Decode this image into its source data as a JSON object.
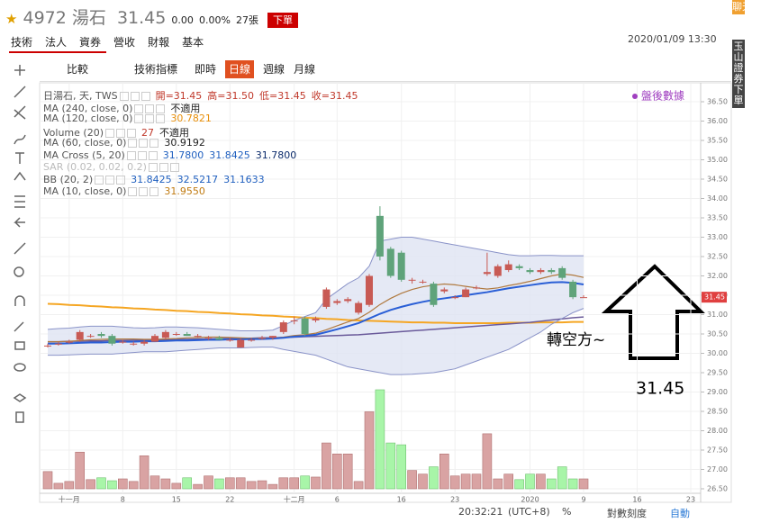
{
  "header": {
    "star": "★",
    "code": "4972",
    "name": "湯石",
    "price": "31.45",
    "change": "0.00",
    "change_pct": "0.00%",
    "volume": "27張",
    "order_button": "下單",
    "datetime": "2020/01/09 13:30"
  },
  "tabs": [
    "技術",
    "法人",
    "資券",
    "營收",
    "財報",
    "基本"
  ],
  "toolbar": {
    "compare": "比較",
    "indicators": "技術指標",
    "items": [
      "即時",
      "日線",
      "週線",
      "月線"
    ]
  },
  "legend_rows": [
    {
      "label": "日湯石, 天, TWS",
      "values": [
        "開=31.45",
        "高=31.50",
        "低=31.45",
        "收=31.45"
      ],
      "colors": [
        "#c0392b"
      ]
    },
    {
      "label": "MA (240, close, 0)",
      "values": [
        "不適用"
      ],
      "colors": [
        "#222"
      ]
    },
    {
      "label": "MA (120, close, 0)",
      "values": [
        "30.7821"
      ],
      "colors": [
        "#e8900c"
      ]
    },
    {
      "label": "Volume (20)",
      "values": [
        "27",
        "不適用"
      ],
      "colors": [
        "#c0392b",
        "#222"
      ]
    },
    {
      "label": "MA (60, close, 0)",
      "values": [
        "30.9192"
      ],
      "colors": [
        "#222"
      ]
    },
    {
      "label": "MA Cross (5, 20)",
      "values": [
        "31.7800",
        "31.8425",
        "31.7800"
      ],
      "colors": [
        "#1f5fbf",
        "#1f5fbf",
        "#0a2a6a"
      ]
    },
    {
      "label": "SAR (0.02, 0.02, 0.2)",
      "values": [],
      "colors": [
        "#bbb"
      ]
    },
    {
      "label": "BB (20, 2)",
      "values": [
        "31.8425",
        "32.5217",
        "31.1633"
      ],
      "colors": [
        "#1f5fbf"
      ]
    },
    {
      "label": "MA (10, close, 0)",
      "values": [
        "31.9550"
      ],
      "colors": [
        "#c07a10"
      ]
    }
  ],
  "side_tabs": [
    "聊天室",
    "玉山證券下單"
  ],
  "footer": {
    "time": "20:32:21",
    "tz": "(UTC+8)",
    "pct": "%",
    "log": "對數刻度",
    "auto": "自動"
  },
  "chart_data": {
    "type": "candlestick",
    "categories": [
      null,
      null,
      "十一月",
      null,
      null,
      null,
      null,
      "8",
      null,
      null,
      null,
      null,
      "15",
      null,
      null,
      null,
      null,
      "22",
      null,
      null,
      null,
      null,
      null,
      "十二月",
      null,
      null,
      null,
      "6",
      null,
      null,
      null,
      null,
      null,
      "16",
      null,
      null,
      null,
      null,
      "23",
      null,
      null,
      null,
      null,
      null,
      null,
      "2020",
      null,
      null,
      null,
      null,
      "9",
      null,
      null,
      null,
      null,
      "16",
      null,
      null,
      null,
      null,
      "23",
      null
    ],
    "open": [
      30.2,
      30.25,
      30.3,
      30.35,
      30.45,
      30.5,
      30.45,
      30.3,
      30.25,
      30.25,
      30.3,
      30.4,
      30.5,
      30.5,
      30.45,
      30.4,
      30.4,
      30.35,
      30.15,
      30.35,
      30.4,
      30.4,
      30.55,
      30.85,
      30.9,
      30.85,
      31.2,
      31.3,
      31.35,
      31.05,
      31.25,
      33.55,
      32.7,
      32.6,
      31.9,
      31.85,
      31.8,
      31.6,
      31.45,
      31.45,
      31.7,
      32.05,
      32.0,
      32.15,
      32.25,
      32.15,
      32.1,
      32.15,
      32.2,
      31.85,
      31.45,
      null,
      null,
      null,
      null,
      null,
      null,
      null,
      null,
      null,
      null,
      null
    ],
    "high": [
      30.25,
      30.3,
      30.35,
      30.6,
      30.5,
      30.55,
      30.5,
      30.35,
      30.3,
      30.35,
      30.5,
      30.6,
      30.55,
      30.55,
      30.5,
      30.45,
      30.45,
      30.4,
      30.4,
      30.4,
      30.45,
      30.45,
      30.85,
      30.95,
      30.95,
      30.95,
      31.7,
      31.4,
      31.45,
      31.35,
      32.05,
      33.8,
      32.75,
      32.65,
      31.95,
      31.9,
      31.85,
      31.7,
      31.5,
      31.7,
      31.75,
      32.6,
      32.3,
      32.4,
      32.3,
      32.2,
      32.2,
      32.2,
      32.25,
      31.9,
      31.5,
      null,
      null,
      null,
      null,
      null,
      null,
      null,
      null,
      null,
      null,
      null
    ],
    "low": [
      30.15,
      30.2,
      30.25,
      30.3,
      30.4,
      30.4,
      30.2,
      30.25,
      30.2,
      30.2,
      30.3,
      30.35,
      30.45,
      30.45,
      30.4,
      30.35,
      30.35,
      30.3,
      30.15,
      30.3,
      30.35,
      30.35,
      30.5,
      30.75,
      30.45,
      30.8,
      31.15,
      31.25,
      31.3,
      31.0,
      31.2,
      32.4,
      31.95,
      31.85,
      31.8,
      31.8,
      31.2,
      31.55,
      31.4,
      31.45,
      31.65,
      32.0,
      31.95,
      32.1,
      32.15,
      32.05,
      32.05,
      32.05,
      31.9,
      31.4,
      31.45,
      null,
      null,
      null,
      null,
      null,
      null,
      null,
      null,
      null,
      null,
      null
    ],
    "close": [
      30.2,
      30.25,
      30.3,
      30.55,
      30.45,
      30.45,
      30.25,
      30.3,
      30.25,
      30.3,
      30.45,
      30.55,
      30.5,
      30.45,
      30.45,
      30.4,
      30.35,
      30.35,
      30.35,
      30.35,
      30.4,
      30.45,
      30.8,
      30.85,
      30.5,
      30.9,
      31.65,
      31.35,
      31.4,
      31.3,
      32.0,
      32.5,
      32.0,
      31.9,
      31.9,
      31.85,
      31.25,
      31.65,
      31.45,
      31.65,
      31.7,
      32.1,
      32.25,
      32.3,
      32.2,
      32.1,
      32.15,
      32.1,
      31.95,
      31.45,
      31.45,
      null,
      null,
      null,
      null,
      null,
      null,
      null,
      null,
      null,
      null,
      null
    ],
    "volume": [
      47,
      15,
      20,
      100,
      25,
      30,
      22,
      27,
      20,
      90,
      35,
      27,
      15,
      30,
      12,
      35,
      27,
      30,
      30,
      20,
      22,
      12,
      30,
      30,
      35,
      32,
      125,
      95,
      95,
      20,
      210,
      270,
      125,
      120,
      50,
      40,
      60,
      95,
      35,
      40,
      40,
      150,
      27,
      40,
      25,
      40,
      40,
      27,
      60,
      27,
      27,
      null,
      null,
      null,
      null,
      null,
      null,
      null,
      null,
      null,
      null,
      null
    ],
    "lines": [
      {
        "color": "#f5a623",
        "width": 2,
        "values": [
          31.28,
          31.27,
          31.25,
          31.24,
          31.22,
          31.21,
          31.19,
          31.18,
          31.16,
          31.15,
          31.13,
          31.12,
          31.1,
          31.09,
          31.07,
          31.06,
          31.04,
          31.03,
          31.01,
          31.0,
          30.98,
          30.97,
          30.95,
          30.94,
          30.92,
          30.91,
          30.89,
          30.88,
          30.86,
          30.85,
          30.84,
          30.83,
          30.82,
          30.81,
          30.8,
          30.8,
          30.79,
          30.79,
          30.78,
          30.78,
          30.78,
          30.78,
          30.78,
          30.79,
          30.79,
          30.79,
          30.8,
          30.8,
          30.8,
          30.81,
          30.81,
          null,
          null,
          null,
          null,
          null,
          null,
          null,
          null,
          null,
          null,
          null
        ]
      },
      {
        "color": "#6a5a9a",
        "width": 1.5,
        "values": [
          30.3,
          30.3,
          30.31,
          30.31,
          30.32,
          30.32,
          30.33,
          30.33,
          30.34,
          30.34,
          30.35,
          30.35,
          30.36,
          30.36,
          30.37,
          30.37,
          30.38,
          30.38,
          30.39,
          30.39,
          30.4,
          30.4,
          30.41,
          30.42,
          30.43,
          30.44,
          30.45,
          30.46,
          30.47,
          30.48,
          30.5,
          30.52,
          30.54,
          30.56,
          30.58,
          30.6,
          30.62,
          30.64,
          30.66,
          30.68,
          30.7,
          30.72,
          30.74,
          30.76,
          30.78,
          30.8,
          30.83,
          30.86,
          30.89,
          30.92,
          30.94,
          null,
          null,
          null,
          null,
          null,
          null,
          null,
          null,
          null,
          null,
          null
        ]
      },
      {
        "color": "#b07a40",
        "width": 1.2,
        "values": [
          30.3,
          30.3,
          30.31,
          30.33,
          30.35,
          30.36,
          30.37,
          30.37,
          30.37,
          30.36,
          30.36,
          30.37,
          30.38,
          30.4,
          30.41,
          30.42,
          30.42,
          30.41,
          30.4,
          30.39,
          30.39,
          30.39,
          30.42,
          30.46,
          30.48,
          30.52,
          30.61,
          30.71,
          30.81,
          30.9,
          31.06,
          31.26,
          31.42,
          31.55,
          31.65,
          31.72,
          31.76,
          31.79,
          31.77,
          31.73,
          31.69,
          31.66,
          31.69,
          31.75,
          31.8,
          31.86,
          31.93,
          32.0,
          32.05,
          32.02,
          31.96,
          null,
          null,
          null,
          null,
          null,
          null,
          null,
          null,
          null,
          null,
          null
        ]
      },
      {
        "color": "#2a5fd6",
        "width": 2,
        "values": [
          30.25,
          30.25,
          30.26,
          30.27,
          30.28,
          30.28,
          30.29,
          30.3,
          30.3,
          30.31,
          30.31,
          30.32,
          30.33,
          30.33,
          30.34,
          30.35,
          30.35,
          30.36,
          30.36,
          30.37,
          30.37,
          30.38,
          30.4,
          30.43,
          30.45,
          30.48,
          30.55,
          30.62,
          30.7,
          30.78,
          30.9,
          31.02,
          31.12,
          31.2,
          31.27,
          31.33,
          31.38,
          31.42,
          31.46,
          31.5,
          31.54,
          31.58,
          31.63,
          31.68,
          31.72,
          31.76,
          31.8,
          31.83,
          31.84,
          31.82,
          31.78,
          null,
          null,
          null,
          null,
          null,
          null,
          null,
          null,
          null,
          null,
          null
        ]
      },
      {
        "color": "#8a93c8",
        "width": 1,
        "values": [
          30.62,
          30.64,
          30.65,
          30.68,
          30.7,
          30.7,
          30.7,
          30.68,
          30.66,
          30.65,
          30.66,
          30.68,
          30.68,
          30.67,
          30.66,
          30.64,
          30.62,
          30.6,
          30.58,
          30.58,
          30.58,
          30.6,
          30.72,
          30.85,
          30.95,
          31.05,
          31.4,
          31.6,
          31.8,
          31.95,
          32.25,
          32.9,
          32.95,
          33.0,
          33.0,
          32.95,
          32.9,
          32.85,
          32.8,
          32.75,
          32.7,
          32.65,
          32.6,
          32.55,
          32.52,
          32.52,
          32.53,
          32.53,
          32.52,
          32.52,
          32.52,
          null,
          null,
          null,
          null,
          null,
          null,
          null,
          null,
          null,
          null,
          null
        ]
      },
      {
        "color": "#8a93c8",
        "width": 1,
        "values": [
          29.95,
          29.95,
          29.96,
          29.97,
          29.98,
          29.98,
          29.98,
          30.0,
          30.02,
          30.04,
          30.04,
          30.04,
          30.06,
          30.08,
          30.1,
          30.12,
          30.14,
          30.14,
          30.14,
          30.15,
          30.16,
          30.16,
          30.1,
          30.05,
          30.0,
          29.95,
          29.85,
          29.75,
          29.65,
          29.6,
          29.55,
          29.5,
          29.45,
          29.45,
          29.46,
          29.48,
          29.5,
          29.55,
          29.6,
          29.7,
          29.8,
          29.9,
          30.0,
          30.1,
          30.25,
          30.4,
          30.55,
          30.75,
          30.9,
          31.05,
          31.16,
          null,
          null,
          null,
          null,
          null,
          null,
          null,
          null,
          null,
          null,
          null
        ]
      }
    ],
    "band_fill": "#dfe3f3",
    "up_color": "#c85a54",
    "down_color": "#5fa37a",
    "volume_up_color": "#d9a3a3",
    "volume_down_color": "#a8f5a8",
    "ylim": [
      26.5,
      36.5
    ],
    "yticks": [
      {
        "value": 26.5,
        "label": "26.50"
      },
      {
        "value": 27,
        "label": "27.00"
      },
      {
        "value": 27.5,
        "label": "27.50"
      },
      {
        "value": 28,
        "label": "28.00"
      },
      {
        "value": 28.5,
        "label": "28.50"
      },
      {
        "value": 29,
        "label": "29.00"
      },
      {
        "value": 29.5,
        "label": "29.50"
      },
      {
        "value": 30,
        "label": "30.00"
      },
      {
        "value": 30.5,
        "label": "30.50"
      },
      {
        "value": 31,
        "label": "31.00"
      },
      {
        "value": 31.5,
        "label": "31.50"
      },
      {
        "value": 32,
        "label": "32.00"
      },
      {
        "value": 32.5,
        "label": "32.50"
      },
      {
        "value": 33,
        "label": "33.00"
      },
      {
        "value": 33.5,
        "label": "33.50"
      },
      {
        "value": 34,
        "label": "34.00"
      },
      {
        "value": 34.5,
        "label": "34.50"
      },
      {
        "value": 35,
        "label": "35.00"
      },
      {
        "value": 35.5,
        "label": "35.50"
      },
      {
        "value": 36,
        "label": "36.00"
      },
      {
        "value": 36.5,
        "label": "36.50"
      }
    ],
    "grid": true,
    "price_marker": 31.45,
    "annotations": {
      "after_hours": "盤後數據",
      "trend_note": "轉空方~",
      "price_note": "31.45"
    }
  }
}
